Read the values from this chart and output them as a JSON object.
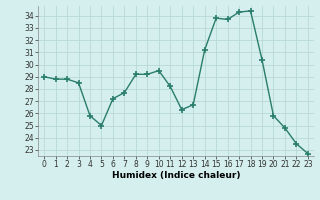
{
  "x": [
    0,
    1,
    2,
    3,
    4,
    5,
    6,
    7,
    8,
    9,
    10,
    11,
    12,
    13,
    14,
    15,
    16,
    17,
    18,
    19,
    20,
    21,
    22,
    23
  ],
  "y": [
    29.0,
    28.8,
    28.8,
    28.5,
    25.8,
    25.0,
    27.2,
    27.7,
    29.2,
    29.2,
    29.5,
    28.2,
    26.3,
    26.7,
    31.2,
    33.8,
    33.7,
    34.3,
    34.4,
    30.4,
    25.8,
    24.8,
    23.5,
    22.7
  ],
  "line_color": "#2a7d6b",
  "marker": "+",
  "markersize": 4.0,
  "markeredgewidth": 1.2,
  "linewidth": 1.0,
  "xlabel": "Humidex (Indice chaleur)",
  "ylabel": "",
  "ylim": [
    22.5,
    34.8
  ],
  "xlim": [
    -0.5,
    23.5
  ],
  "yticks": [
    23,
    24,
    25,
    26,
    27,
    28,
    29,
    30,
    31,
    32,
    33,
    34
  ],
  "xticks": [
    0,
    1,
    2,
    3,
    4,
    5,
    6,
    7,
    8,
    9,
    10,
    11,
    12,
    13,
    14,
    15,
    16,
    17,
    18,
    19,
    20,
    21,
    22,
    23
  ],
  "xtick_labels": [
    "0",
    "1",
    "2",
    "3",
    "4",
    "5",
    "6",
    "7",
    "8",
    "9",
    "10",
    "11",
    "12",
    "13",
    "14",
    "15",
    "16",
    "17",
    "18",
    "19",
    "20",
    "21",
    "22",
    "23"
  ],
  "bg_color": "#d4efed",
  "grid_color": "#b8d9d5",
  "tick_fontsize": 5.5,
  "xlabel_fontsize": 6.5,
  "xlabel_fontweight": "bold"
}
